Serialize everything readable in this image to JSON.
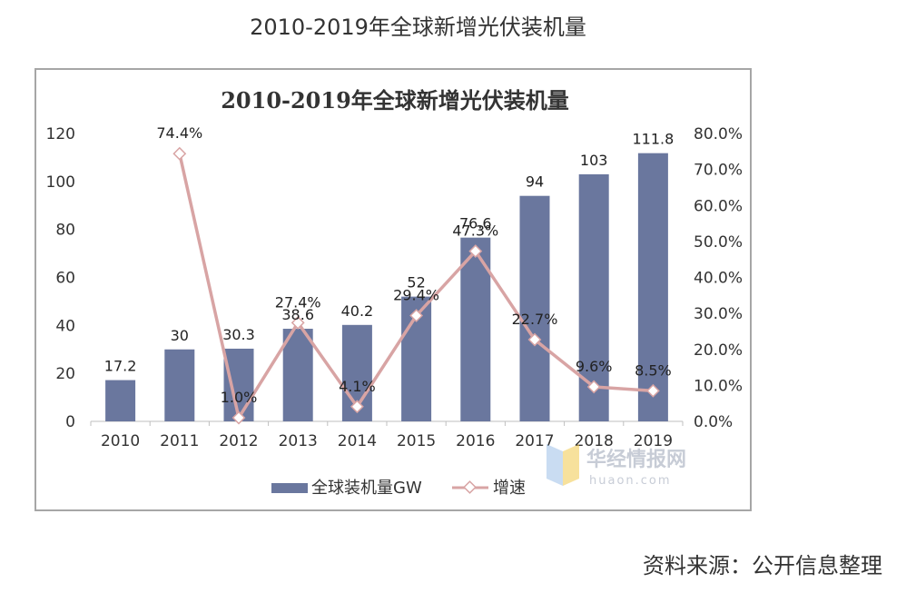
{
  "page_title": "2010-2019年全球新增光伏装机量",
  "source": "资料来源：公开信息整理",
  "watermark": {
    "name": "华经情报网",
    "domain": "huaon.com"
  },
  "colors": {
    "bar": "#6a779e",
    "line": "#d8a4a4",
    "marker_fill": "#ffffff",
    "axis": "#bfbfbf"
  },
  "chart_data": {
    "type": "bar",
    "title": "2010-2019年全球新增光伏装机量",
    "categories": [
      "2010",
      "2011",
      "2012",
      "2013",
      "2014",
      "2015",
      "2016",
      "2017",
      "2018",
      "2019"
    ],
    "series": [
      {
        "name": "全球装机量GW",
        "type": "bar",
        "axis": "left",
        "values": [
          17.2,
          30,
          30.3,
          38.6,
          40.2,
          52,
          76.6,
          94,
          103,
          111.8
        ],
        "labels": [
          "17.2",
          "30",
          "30.3",
          "38.6",
          "40.2",
          "52",
          "76.6",
          "94",
          "103",
          "111.8"
        ]
      },
      {
        "name": "增速",
        "type": "line",
        "axis": "right",
        "values": [
          null,
          74.4,
          1.0,
          27.4,
          4.1,
          29.4,
          47.3,
          22.7,
          9.6,
          8.5
        ],
        "labels": [
          null,
          "74.4%",
          "1.0%",
          "27.4%",
          "4.1%",
          "29.4%",
          "47.3%",
          "22.7%",
          "9.6%",
          "8.5%"
        ]
      }
    ],
    "y_left": {
      "min": 0,
      "max": 120,
      "ticks": [
        "0",
        "20",
        "40",
        "60",
        "80",
        "100",
        "120"
      ]
    },
    "y_right": {
      "min": 0,
      "max": 80,
      "ticks": [
        "0.0%",
        "10.0%",
        "20.0%",
        "30.0%",
        "40.0%",
        "50.0%",
        "60.0%",
        "70.0%",
        "80.0%"
      ]
    },
    "grid": false,
    "legend": "bottom"
  }
}
